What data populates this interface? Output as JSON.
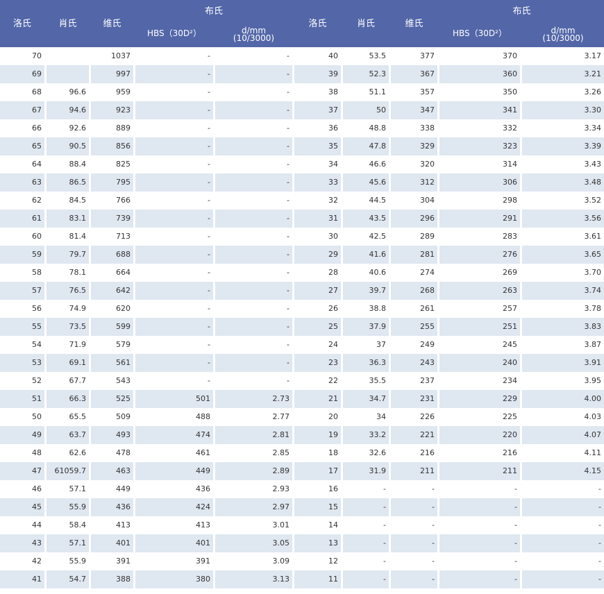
{
  "header": {
    "left": {
      "cols": [
        "洛氏",
        "肖氏",
        "维氏"
      ],
      "group": "布氏",
      "sub": [
        "HBS（30D²）",
        "d/mm\n(10/3000)"
      ]
    },
    "right": {
      "cols": [
        "洛氏",
        "肖氏",
        "维氏"
      ],
      "group": "布氏",
      "sub": [
        "HBS（30D²）",
        "d/mm\n(10/3000)"
      ]
    }
  },
  "table": {
    "rows": [
      [
        "70",
        null,
        "1037",
        "-",
        "-",
        "40",
        "53.5",
        "377",
        "370",
        "3.17"
      ],
      [
        "69",
        null,
        "997",
        "-",
        "-",
        "39",
        "52.3",
        "367",
        "360",
        "3.21"
      ],
      [
        "68",
        "96.6",
        "959",
        "-",
        "-",
        "38",
        "51.1",
        "357",
        "350",
        "3.26"
      ],
      [
        "67",
        "94.6",
        "923",
        "-",
        "-",
        "37",
        "50",
        "347",
        "341",
        "3.30"
      ],
      [
        "66",
        "92.6",
        "889",
        "-",
        "-",
        "36",
        "48.8",
        "338",
        "332",
        "3.34"
      ],
      [
        "65",
        "90.5",
        "856",
        "-",
        "-",
        "35",
        "47.8",
        "329",
        "323",
        "3.39"
      ],
      [
        "64",
        "88.4",
        "825",
        "-",
        "-",
        "34",
        "46.6",
        "320",
        "314",
        "3.43"
      ],
      [
        "63",
        "86.5",
        "795",
        "-",
        "-",
        "33",
        "45.6",
        "312",
        "306",
        "3.48"
      ],
      [
        "62",
        "84.5",
        "766",
        "-",
        "-",
        "32",
        "44.5",
        "304",
        "298",
        "3.52"
      ],
      [
        "61",
        "83.1",
        "739",
        "-",
        "-",
        "31",
        "43.5",
        "296",
        "291",
        "3.56"
      ],
      [
        "60",
        "81.4",
        "713",
        "-",
        "-",
        "30",
        "42.5",
        "289",
        "283",
        "3.61"
      ],
      [
        "59",
        "79.7",
        "688",
        "-",
        "-",
        "29",
        "41.6",
        "281",
        "276",
        "3.65"
      ],
      [
        "58",
        "78.1",
        "664",
        "-",
        "-",
        "28",
        "40.6",
        "274",
        "269",
        "3.70"
      ],
      [
        "57",
        "76.5",
        "642",
        "-",
        "-",
        "27",
        "39.7",
        "268",
        "263",
        "3.74"
      ],
      [
        "56",
        "74.9",
        "620",
        "-",
        "-",
        "26",
        "38.8",
        "261",
        "257",
        "3.78"
      ],
      [
        "55",
        "73.5",
        "599",
        "-",
        "-",
        "25",
        "37.9",
        "255",
        "251",
        "3.83"
      ],
      [
        "54",
        "71.9",
        "579",
        "-",
        "-",
        "24",
        "37",
        "249",
        "245",
        "3.87"
      ],
      [
        "53",
        "69.1",
        "561",
        "-",
        "-",
        "23",
        "36.3",
        "243",
        "240",
        "3.91"
      ],
      [
        "52",
        "67.7",
        "543",
        "-",
        "-",
        "22",
        "35.5",
        "237",
        "234",
        "3.95"
      ],
      [
        "51",
        "66.3",
        "525",
        "501",
        "2.73",
        "21",
        "34.7",
        "231",
        "229",
        "4.00"
      ],
      [
        "50",
        "65.5",
        "509",
        "488",
        "2.77",
        "20",
        "34",
        "226",
        "225",
        "4.03"
      ],
      [
        "49",
        "63.7",
        "493",
        "474",
        "2.81",
        "19",
        "33.2",
        "221",
        "220",
        "4.07"
      ],
      [
        "48",
        "62.6",
        "478",
        "461",
        "2.85",
        "18",
        "32.6",
        "216",
        "216",
        "4.11"
      ],
      [
        "47",
        "61059.7",
        "463",
        "449",
        "2.89",
        "17",
        "31.9",
        "211",
        "211",
        "4.15"
      ],
      [
        "46",
        "57.1",
        "449",
        "436",
        "2.93",
        "16",
        "-",
        "-",
        "-",
        "-"
      ],
      [
        "45",
        "55.9",
        "436",
        "424",
        "2.97",
        "15",
        "-",
        "-",
        "-",
        "-"
      ],
      [
        "44",
        "58.4",
        "413",
        "413",
        "3.01",
        "14",
        "-",
        "-",
        "-",
        "-"
      ],
      [
        "43",
        "57.1",
        "401",
        "401",
        "3.05",
        "13",
        "-",
        "-",
        "-",
        "-"
      ],
      [
        "42",
        "55.9",
        "391",
        "391",
        "3.09",
        "12",
        "-",
        "-",
        "-",
        "-"
      ],
      [
        "41",
        "54.7",
        "388",
        "380",
        "3.13",
        "11",
        "-",
        "-",
        "-",
        "-"
      ]
    ]
  }
}
